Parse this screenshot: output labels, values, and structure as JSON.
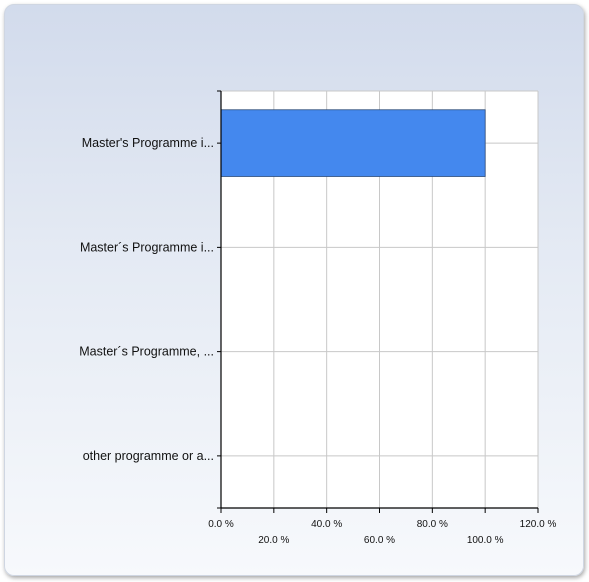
{
  "chart_data": {
    "type": "bar",
    "orientation": "horizontal",
    "categories": [
      "Master's Programme i...",
      "Master´s Programme i...",
      "Master´s Programme, ...",
      "other programme or a..."
    ],
    "values": [
      100.0,
      0,
      0,
      0
    ],
    "xlim": [
      0,
      120
    ],
    "xticks": [
      {
        "value": 0,
        "label": "0.0 %"
      },
      {
        "value": 20,
        "label": "20.0 %"
      },
      {
        "value": 40,
        "label": "40.0 %"
      },
      {
        "value": 60,
        "label": "60.0 %"
      },
      {
        "value": 80,
        "label": "80.0 %"
      },
      {
        "value": 100,
        "label": "100.0 %"
      },
      {
        "value": 120,
        "label": "120.0 %"
      }
    ],
    "grid": true,
    "bar_color": "#4488ee"
  }
}
